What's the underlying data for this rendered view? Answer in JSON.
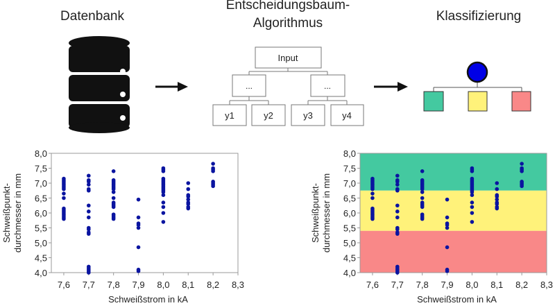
{
  "titles": {
    "database": "Datenbank",
    "algorithm_line1": "Entscheidungsbaum-",
    "algorithm_line2": "Algorithmus",
    "classification": "Klassifizierung"
  },
  "tree": {
    "root": "Input",
    "inner_left": "...",
    "inner_right": "...",
    "leaves": [
      "y1",
      "y2",
      "y3",
      "y4"
    ]
  },
  "icons": {
    "database": "database-icon",
    "arrow": "arrow-right-icon",
    "class_root": "circle-node-icon"
  },
  "colors": {
    "point": "#0a14a0",
    "class_root": "#0000e6",
    "class_green": "#44c9a0",
    "class_yellow": "#fff27a",
    "class_red": "#f98888"
  },
  "chart_data": [
    {
      "type": "scatter",
      "xlabel": "Schweißstrom in kA",
      "ylabel_line1": "Schweißpunkt-",
      "ylabel_line2": "durchmesser in mm",
      "xlim": [
        7.55,
        8.3
      ],
      "ylim": [
        4.0,
        8.0
      ],
      "xticks": [
        "7,6",
        "7,7",
        "7,8",
        "7,9",
        "8,0",
        "8,1",
        "8,2",
        "8,3"
      ],
      "yticks": [
        "4,0",
        "4,5",
        "5,0",
        "5,5",
        "6,0",
        "6,5",
        "7,0",
        "7,5",
        "8,0"
      ],
      "grid": false,
      "points": {
        "7.6": [
          5.8,
          5.85,
          5.9,
          5.95,
          6.0,
          6.05,
          6.1,
          6.15,
          6.5,
          6.65,
          6.8,
          6.85,
          6.9,
          6.95,
          7.0,
          7.05,
          7.1,
          7.15
        ],
        "7.7": [
          4.0,
          4.05,
          4.1,
          4.15,
          4.2,
          5.3,
          5.35,
          5.45,
          5.5,
          5.85,
          6.05,
          6.25,
          6.75,
          6.8,
          6.95,
          7.05,
          7.1,
          7.25
        ],
        "7.8": [
          5.8,
          5.85,
          5.9,
          5.95,
          6.2,
          6.25,
          6.3,
          6.35,
          6.5,
          6.7,
          6.8,
          6.85,
          6.9,
          6.95,
          7.0,
          7.05,
          7.1,
          7.4
        ],
        "7.9": [
          4.05,
          4.1,
          4.85,
          5.5,
          5.6,
          5.65,
          5.85,
          6.45
        ],
        "8.0": [
          5.7,
          6.0,
          6.2,
          6.35,
          6.6,
          6.7,
          6.75,
          6.8,
          6.85,
          6.9,
          6.95,
          7.0,
          7.05,
          7.1,
          7.15,
          7.4,
          7.45,
          7.5
        ],
        "8.1": [
          6.15,
          6.2,
          6.3,
          6.35,
          6.45,
          6.55,
          6.6,
          6.8,
          7.0
        ],
        "8.2": [
          6.9,
          6.95,
          7.0,
          7.05,
          7.4,
          7.45,
          7.5,
          7.65
        ]
      }
    },
    {
      "type": "scatter",
      "xlabel": "Schweißstrom in kA",
      "ylabel_line1": "Schweißpunkt-",
      "ylabel_line2": "durchmesser in mm",
      "xlim": [
        7.55,
        8.3
      ],
      "ylim": [
        4.0,
        8.0
      ],
      "xticks": [
        "7,6",
        "7,7",
        "7,8",
        "7,9",
        "8,0",
        "8,1",
        "8,2",
        "8,3"
      ],
      "yticks": [
        "4,0",
        "4,5",
        "5,0",
        "5,5",
        "6,0",
        "6,5",
        "7,0",
        "7,5",
        "8,0"
      ],
      "grid": false,
      "class_regions": [
        {
          "from": 6.75,
          "to": 8.0,
          "color": "#44c9a0"
        },
        {
          "from": 5.4,
          "to": 6.75,
          "color": "#fff27a"
        },
        {
          "from": 4.0,
          "to": 5.4,
          "color": "#f98888"
        }
      ],
      "points_same_as_left": true
    }
  ]
}
